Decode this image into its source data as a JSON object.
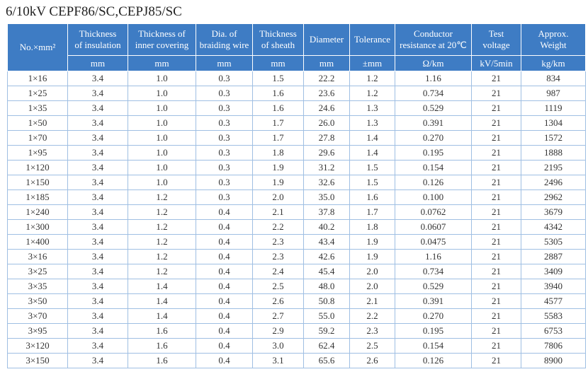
{
  "title": "6/10kV  CEPF86/SC,CEPJ85/SC",
  "table": {
    "header": [
      "No.×mm²",
      "Thickness\nof insulation",
      "Thickness of\ninner covering",
      "Dia. of\nbraiding wire",
      "Thickness\nof sheath",
      "Diameter",
      "Tolerance",
      "Conductor\nresistance at 20℃",
      "Test\nvoltage",
      "Approx.\nWeight"
    ],
    "units": [
      "mm",
      "mm",
      "mm",
      "mm",
      "mm",
      "±mm",
      "Ω/km",
      "kV/5min",
      "kg/km"
    ],
    "rows": [
      [
        "1×16",
        "3.4",
        "1.0",
        "0.3",
        "1.5",
        "22.2",
        "1.2",
        "1.16",
        "21",
        "834"
      ],
      [
        "1×25",
        "3.4",
        "1.0",
        "0.3",
        "1.6",
        "23.6",
        "1.2",
        "0.734",
        "21",
        "987"
      ],
      [
        "1×35",
        "3.4",
        "1.0",
        "0.3",
        "1.6",
        "24.6",
        "1.3",
        "0.529",
        "21",
        "1119"
      ],
      [
        "1×50",
        "3.4",
        "1.0",
        "0.3",
        "1.7",
        "26.0",
        "1.3",
        "0.391",
        "21",
        "1304"
      ],
      [
        "1×70",
        "3.4",
        "1.0",
        "0.3",
        "1.7",
        "27.8",
        "1.4",
        "0.270",
        "21",
        "1572"
      ],
      [
        "1×95",
        "3.4",
        "1.0",
        "0.3",
        "1.8",
        "29.6",
        "1.4",
        "0.195",
        "21",
        "1888"
      ],
      [
        "1×120",
        "3.4",
        "1.0",
        "0.3",
        "1.9",
        "31.2",
        "1.5",
        "0.154",
        "21",
        "2195"
      ],
      [
        "1×150",
        "3.4",
        "1.0",
        "0.3",
        "1.9",
        "32.6",
        "1.5",
        "0.126",
        "21",
        "2496"
      ],
      [
        "1×185",
        "3.4",
        "1.2",
        "0.3",
        "2.0",
        "35.0",
        "1.6",
        "0.100",
        "21",
        "2962"
      ],
      [
        "1×240",
        "3.4",
        "1.2",
        "0.4",
        "2.1",
        "37.8",
        "1.7",
        "0.0762",
        "21",
        "3679"
      ],
      [
        "1×300",
        "3.4",
        "1.2",
        "0.4",
        "2.2",
        "40.2",
        "1.8",
        "0.0607",
        "21",
        "4342"
      ],
      [
        "1×400",
        "3.4",
        "1.2",
        "0.4",
        "2.3",
        "43.4",
        "1.9",
        "0.0475",
        "21",
        "5305"
      ],
      [
        "3×16",
        "3.4",
        "1.2",
        "0.4",
        "2.3",
        "42.6",
        "1.9",
        "1.16",
        "21",
        "2887"
      ],
      [
        "3×25",
        "3.4",
        "1.2",
        "0.4",
        "2.4",
        "45.4",
        "2.0",
        "0.734",
        "21",
        "3409"
      ],
      [
        "3×35",
        "3.4",
        "1.4",
        "0.4",
        "2.5",
        "48.0",
        "2.0",
        "0.529",
        "21",
        "3940"
      ],
      [
        "3×50",
        "3.4",
        "1.4",
        "0.4",
        "2.6",
        "50.8",
        "2.1",
        "0.391",
        "21",
        "4577"
      ],
      [
        "3×70",
        "3.4",
        "1.4",
        "0.4",
        "2.7",
        "55.0",
        "2.2",
        "0.270",
        "21",
        "5583"
      ],
      [
        "3×95",
        "3.4",
        "1.6",
        "0.4",
        "2.9",
        "59.2",
        "2.3",
        "0.195",
        "21",
        "6753"
      ],
      [
        "3×120",
        "3.4",
        "1.6",
        "0.4",
        "3.0",
        "62.4",
        "2.5",
        "0.154",
        "21",
        "7806"
      ],
      [
        "3×150",
        "3.4",
        "1.6",
        "0.4",
        "3.1",
        "65.6",
        "2.6",
        "0.126",
        "21",
        "8900"
      ]
    ]
  }
}
